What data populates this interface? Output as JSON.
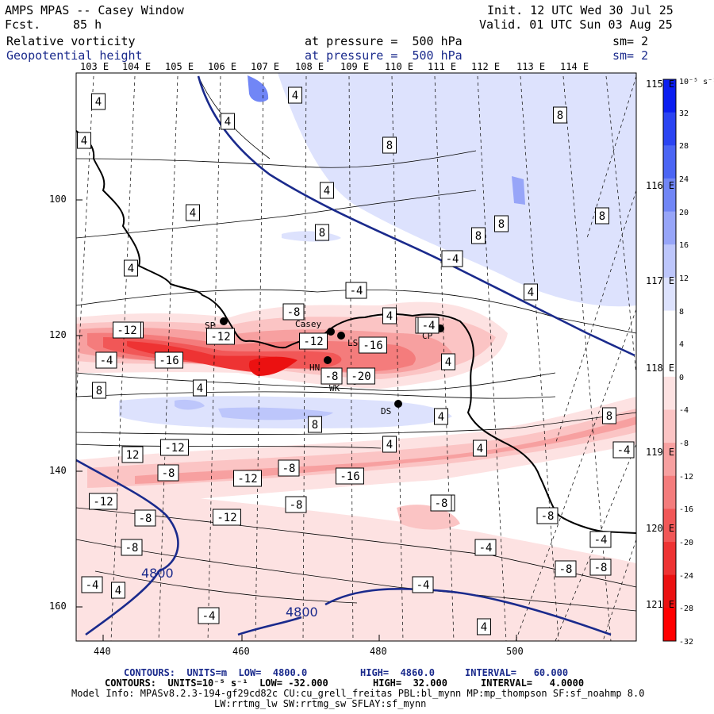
{
  "header": {
    "title": "AMPS MPAS -- Casey Window",
    "fcst_label": "Fcst.",
    "fcst_value": "85 h",
    "field1": "Relative vorticity",
    "field2": "Geopotential height",
    "pressure1": "at pressure =  500 hPa",
    "pressure2": "at pressure =  500 hPa",
    "sm1": "sm= 2",
    "sm2": "sm= 2",
    "init": "Init. 12 UTC Wed 30 Jul 25",
    "valid": "Valid. 01 UTC Sun 03 Aug 25"
  },
  "lon_top_labels": [
    "103 E",
    "104 E",
    "105 E",
    "106 E",
    "107 E",
    "108 E",
    "109 E",
    "110 E",
    "111 E",
    "112 E",
    "113 E",
    "114 E"
  ],
  "lon_right_labels": [
    "115 E",
    "116 E",
    "117 E",
    "118 E",
    "119 E",
    "120 E",
    "121 E"
  ],
  "x_ticks": [
    "440",
    "460",
    "480",
    "500"
  ],
  "y_ticks": [
    "100",
    "120",
    "140",
    "160"
  ],
  "colorbar": {
    "unit": "10⁻⁵ s⁻¹",
    "labels": [
      "32",
      "28",
      "24",
      "20",
      "16",
      "12",
      "8",
      "4",
      "0",
      "-4",
      "-8",
      "-12",
      "-16",
      "-20",
      "-24",
      "-28",
      "-32"
    ],
    "colors": [
      "#0b1ef0",
      "#2b44f2",
      "#4b65f4",
      "#7186f6",
      "#97a5f8",
      "#bdc6fb",
      "#dde2fd",
      "#ffffff",
      "#ffffff",
      "#fde2e2",
      "#fbc4c4",
      "#f7a0a0",
      "#f47c7c",
      "#f15757",
      "#ee3333",
      "#eb1111",
      "#ff0000"
    ]
  },
  "stations": [
    "SP",
    "Casey",
    "LS",
    "CP",
    "HN",
    "WK",
    "DS"
  ],
  "contour_labels": {
    "vorticity": [
      "4",
      "4",
      "4",
      "4",
      "8",
      "8",
      "4",
      "4",
      "8",
      "8",
      "8",
      "8",
      "4",
      "-4",
      "4",
      "4",
      "4",
      "8",
      "4",
      "-4",
      "-8",
      "-8",
      "-20",
      "-12",
      "-12",
      "-16",
      "-4",
      "-16",
      "-8",
      "-20",
      "4",
      "-12",
      "4",
      "8",
      "12",
      "8",
      "4",
      "-4",
      "-8",
      "-12",
      "-8",
      "-16",
      "-12",
      "-12",
      "-8",
      "-8",
      "-8",
      "-8",
      "-8",
      "-4",
      "-4",
      "-4",
      "-8",
      "-4",
      "-8",
      "4",
      "-4",
      "4",
      "-8",
      "-12",
      "-4"
    ],
    "height": [
      "4800",
      "4800"
    ]
  },
  "footer": {
    "line1_a": "CONTOURS:  UNITS=m  LOW=  4800.0",
    "line1_b": "HIGH=  4860.0",
    "line1_c": "INTERVAL=   60.000",
    "line2_a": "CONTOURS:  UNITS=10⁻⁵ s⁻¹  LOW= -32.000",
    "line2_b": "HIGH=  32.000",
    "line2_c": "INTERVAL=   4.0000",
    "line3": "Model Info: MPASv8.2.3-194-gf29cd82c CU:cu_grell_freitas PBL:bl_mynn MP:mp_thompson SF:sf_noahmp 8.0",
    "line4": "LW:rrtmg_lw SW:rrtmg_sw SFLAY:sf_mynn"
  }
}
